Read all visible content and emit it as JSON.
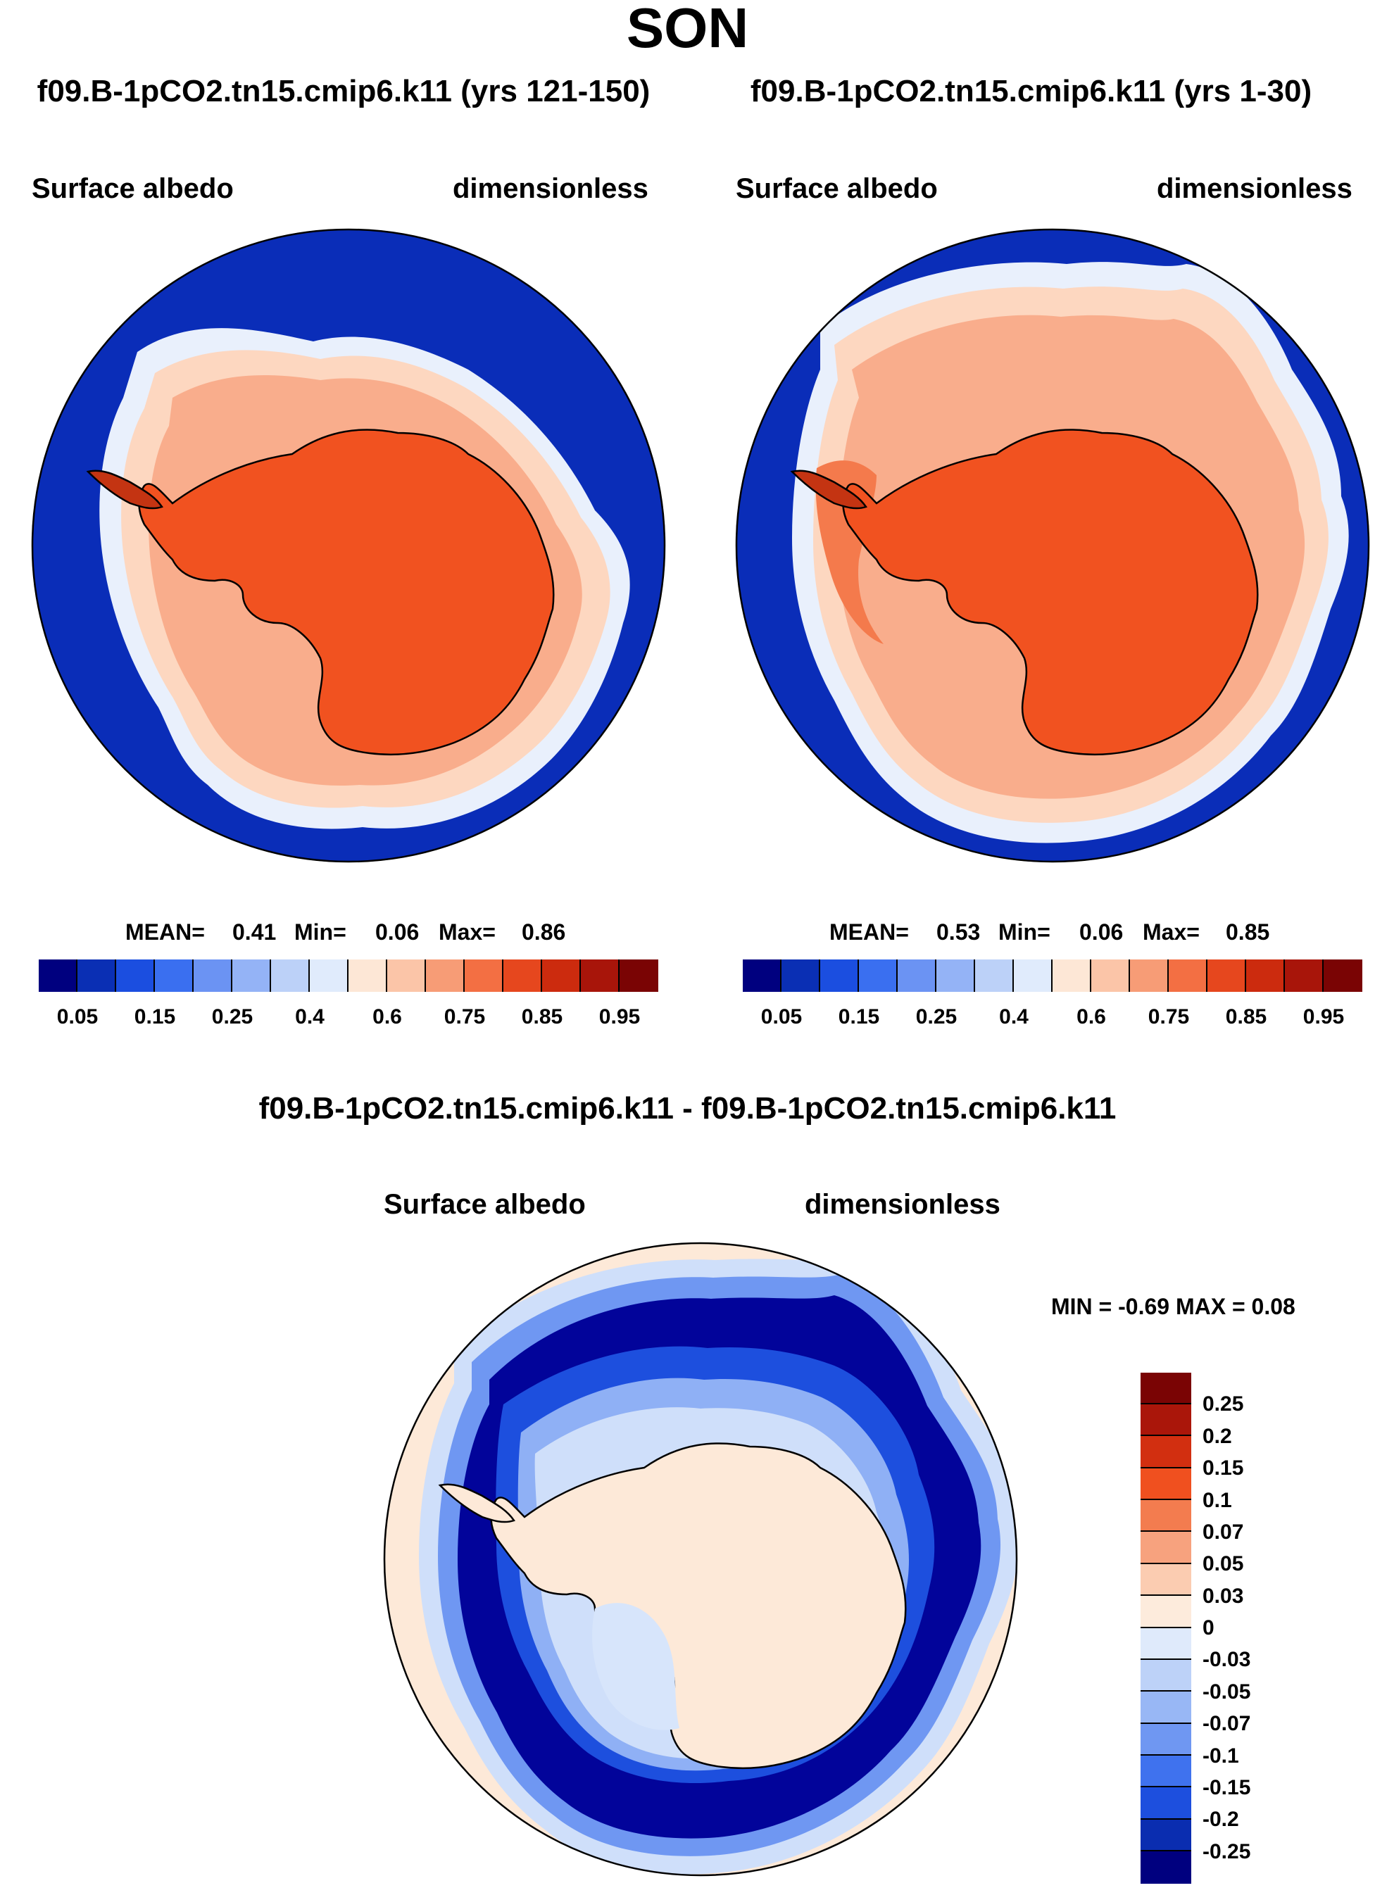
{
  "title": "SON",
  "panels": [
    {
      "case": "f09.B-1pCO2.tn15.cmip6.k11 (yrs 121-150)",
      "variable": "Surface albedo",
      "units": "dimensionless",
      "stats": {
        "mean_label": "MEAN=",
        "mean": "0.41",
        "min_label": "Min=",
        "min": "0.06",
        "max_label": "Max=",
        "max": "0.86"
      }
    },
    {
      "case": "f09.B-1pCO2.tn15.cmip6.k11 (yrs 1-30)",
      "variable": "Surface albedo",
      "units": "dimensionless",
      "stats": {
        "mean_label": "MEAN=",
        "mean": "0.53",
        "min_label": "Min=",
        "min": "0.06",
        "max_label": "Max=",
        "max": "0.85"
      }
    },
    {
      "case": "f09.B-1pCO2.tn15.cmip6.k11 - f09.B-1pCO2.tn15.cmip6.k11",
      "variable": "Surface albedo",
      "units": "dimensionless",
      "stats_text": "MIN =  -0.69 MAX =   0.08"
    }
  ],
  "chart_data": {
    "type": "heatmap",
    "description_units": "dimensionless",
    "abs_colorbar": {
      "ticks": [
        "0.05",
        "0.15",
        "0.25",
        "0.4",
        "0.6",
        "0.75",
        "0.85",
        "0.95"
      ],
      "colors": [
        "#00007f",
        "#0a2fb4",
        "#1b4ee0",
        "#3a6ff0",
        "#6b93f3",
        "#94b3f6",
        "#bcd1f8",
        "#e0ebfc",
        "#fde7d6",
        "#fbc5a8",
        "#f79c76",
        "#f36f43",
        "#e6471e",
        "#cc2b0e",
        "#a8150a",
        "#7a0404"
      ]
    },
    "diff_colorbar": {
      "ticks": [
        "0.25",
        "0.2",
        "0.15",
        "0.1",
        "0.07",
        "0.05",
        "0.03",
        "0",
        "-0.03",
        "-0.05",
        "-0.07",
        "-0.1",
        "-0.15",
        "-0.2",
        "-0.25"
      ],
      "colors": [
        "#7a0404",
        "#aa160a",
        "#d22f10",
        "#f0501f",
        "#f37c4f",
        "#f7a27e",
        "#fbccb1",
        "#fdebdc",
        "#dfeafb",
        "#bdd2f8",
        "#98b7f5",
        "#6f97f2",
        "#3f72ee",
        "#1d4fde",
        "#0a2db0",
        "#00007f"
      ]
    },
    "colors": {
      "ocean_open": "#0a2db8",
      "ice_edge": "#e9f0fc",
      "seaice_1": "#fdd7c0",
      "seaice_2": "#f9ad8c",
      "seaice_3": "#f47a4c",
      "land_ice": "#f15220",
      "diff_far": "#fde9d8",
      "diff_ring_light": "#cfdffa",
      "diff_ring_mid": "#6f97f2",
      "diff_ring_dark": "#02049a",
      "diff_land": "#fde9d8",
      "diff_land_blue": "#d7e5fb"
    }
  }
}
